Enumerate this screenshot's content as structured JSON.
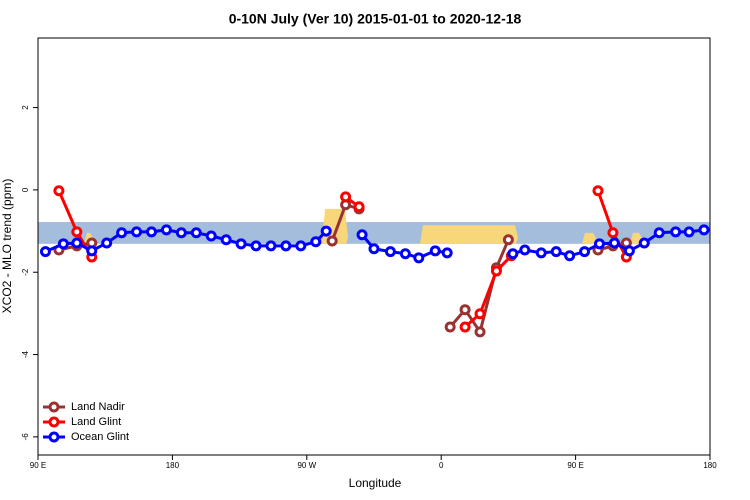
{
  "chart_data": {
    "type": "line",
    "title": "0-10N July (Ver 10)   2015-01-01 to 2020-12-18",
    "x_label": "Longitude",
    "y_label": "XCO2 - MLO trend (ppm)",
    "xlim": [
      90,
      540
    ],
    "ylim": [
      -6.44,
      3.69
    ],
    "xticks": [
      {
        "value": 90,
        "label": "90 E"
      },
      180,
      {
        "value": 270,
        "label": "90 W"
      },
      {
        "value": 360,
        "label": "0"
      },
      {
        "value": 450,
        "label": "90 E"
      },
      {
        "value": 540,
        "label": "180"
      }
    ],
    "yticks": [
      2,
      0,
      -2,
      -4,
      -6
    ],
    "band": [
      -1.31,
      -0.78
    ],
    "legend": "bottom-left",
    "series": [
      {
        "name": "Land Nadir",
        "color": "#993333",
        "x": [
          104,
          116,
          126,
          null,
          287,
          296,
          305,
          null,
          366,
          376,
          386,
          397,
          405,
          null,
          465,
          475,
          484
        ],
        "values": [
          -1.46,
          -1.36,
          -1.29,
          null,
          -1.24,
          -0.36,
          -0.46,
          null,
          -3.33,
          -2.91,
          -3.45,
          -1.89,
          -1.21,
          null,
          -1.46,
          -1.36,
          -1.29
        ]
      },
      {
        "name": "Land Glint",
        "color": "#ff0000",
        "x": [
          104,
          116,
          126,
          null,
          296,
          305,
          null,
          376,
          386,
          397,
          407,
          null,
          465,
          475,
          484
        ],
        "values": [
          -0.02,
          -1.02,
          -1.63,
          null,
          -0.17,
          -0.41,
          null,
          -3.33,
          -3.01,
          -1.97,
          -1.6,
          null,
          -0.02,
          -1.04,
          -1.63
        ]
      },
      {
        "name": "Ocean Glint",
        "color": "#0000ff",
        "x": [
          95,
          107,
          116,
          126,
          136,
          146,
          156,
          166,
          176,
          186,
          196,
          206,
          216,
          226,
          236,
          246,
          256,
          266,
          276,
          283,
          null,
          307,
          315,
          326,
          336,
          345,
          356,
          364,
          null,
          408,
          416,
          427,
          437,
          446,
          456,
          466,
          476,
          486,
          496,
          506,
          517,
          526,
          536
        ],
        "values": [
          -1.5,
          -1.31,
          -1.29,
          -1.48,
          -1.29,
          -1.04,
          -1.02,
          -1.02,
          -0.97,
          -1.04,
          -1.04,
          -1.12,
          -1.21,
          -1.31,
          -1.36,
          -1.36,
          -1.36,
          -1.36,
          -1.26,
          -1.0,
          null,
          -1.09,
          -1.43,
          -1.5,
          -1.55,
          -1.65,
          -1.48,
          -1.53,
          null,
          -1.55,
          -1.46,
          -1.53,
          -1.5,
          -1.6,
          -1.5,
          -1.31,
          -1.29,
          -1.48,
          -1.29,
          -1.04,
          -1.02,
          -1.02,
          -0.97
        ]
      }
    ]
  }
}
